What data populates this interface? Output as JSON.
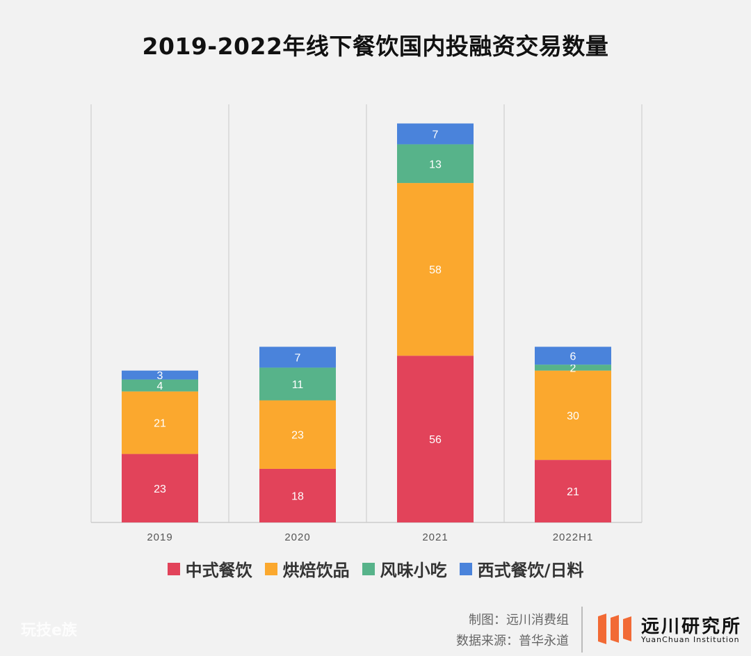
{
  "title": "2019-2022年线下餐饮国内投融资交易数量",
  "chart_data": {
    "type": "bar",
    "stacked": true,
    "categories": [
      "2019",
      "2020",
      "2021",
      "2022H1"
    ],
    "series": [
      {
        "name": "中式餐饮",
        "color": "#e2435a",
        "values": [
          23,
          18,
          56,
          21
        ]
      },
      {
        "name": "烘焙饮品",
        "color": "#fba82e",
        "values": [
          21,
          23,
          58,
          30
        ]
      },
      {
        "name": "风味小吃",
        "color": "#57b38a",
        "values": [
          4,
          11,
          13,
          2
        ]
      },
      {
        "name": "西式餐饮/日料",
        "color": "#4a83db",
        "values": [
          3,
          7,
          7,
          6
        ]
      }
    ],
    "ylim": [
      0,
      140
    ],
    "grid": "vertical separators",
    "legend_position": "bottom",
    "data_labels": true
  },
  "footer": {
    "credit_line1": "制图：远川消费组",
    "credit_line2": "数据来源：普华永道"
  },
  "logo": {
    "name_cn": "远川研究所",
    "name_en": "YuanChuan Institution",
    "color": "#f26a35"
  },
  "watermark": "玩技e族"
}
